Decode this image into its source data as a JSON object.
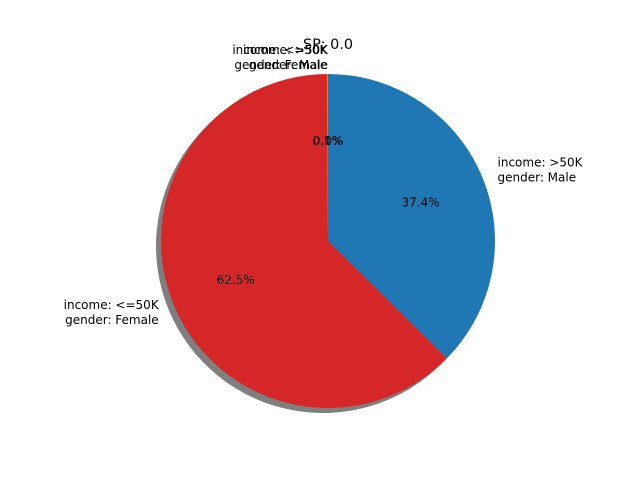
{
  "chart_data": {
    "type": "pie",
    "title": "SP: 0.0",
    "series": [
      {
        "label_lines": [
          "income: >50K",
          "gender: Male"
        ],
        "value": 37.4,
        "pct_label": "37.4%",
        "color": "#1f77b4"
      },
      {
        "label_lines": [
          "income: <=50K",
          "gender: Female"
        ],
        "value": 62.5,
        "pct_label": "62.5%",
        "color": "#d62728"
      },
      {
        "label_lines": [
          "income: <=50K",
          "gender: Male"
        ],
        "value": 0.1,
        "pct_label": "0.1%",
        "color": "#ff7f0e"
      },
      {
        "label_lines": [
          "income: >50K",
          "gender: Female"
        ],
        "value": 0.0,
        "pct_label": "0.0%",
        "color": "#2ca02c"
      }
    ],
    "start_angle_deg": 90,
    "direction": "clockwise",
    "shadow": true,
    "legend": "none"
  }
}
